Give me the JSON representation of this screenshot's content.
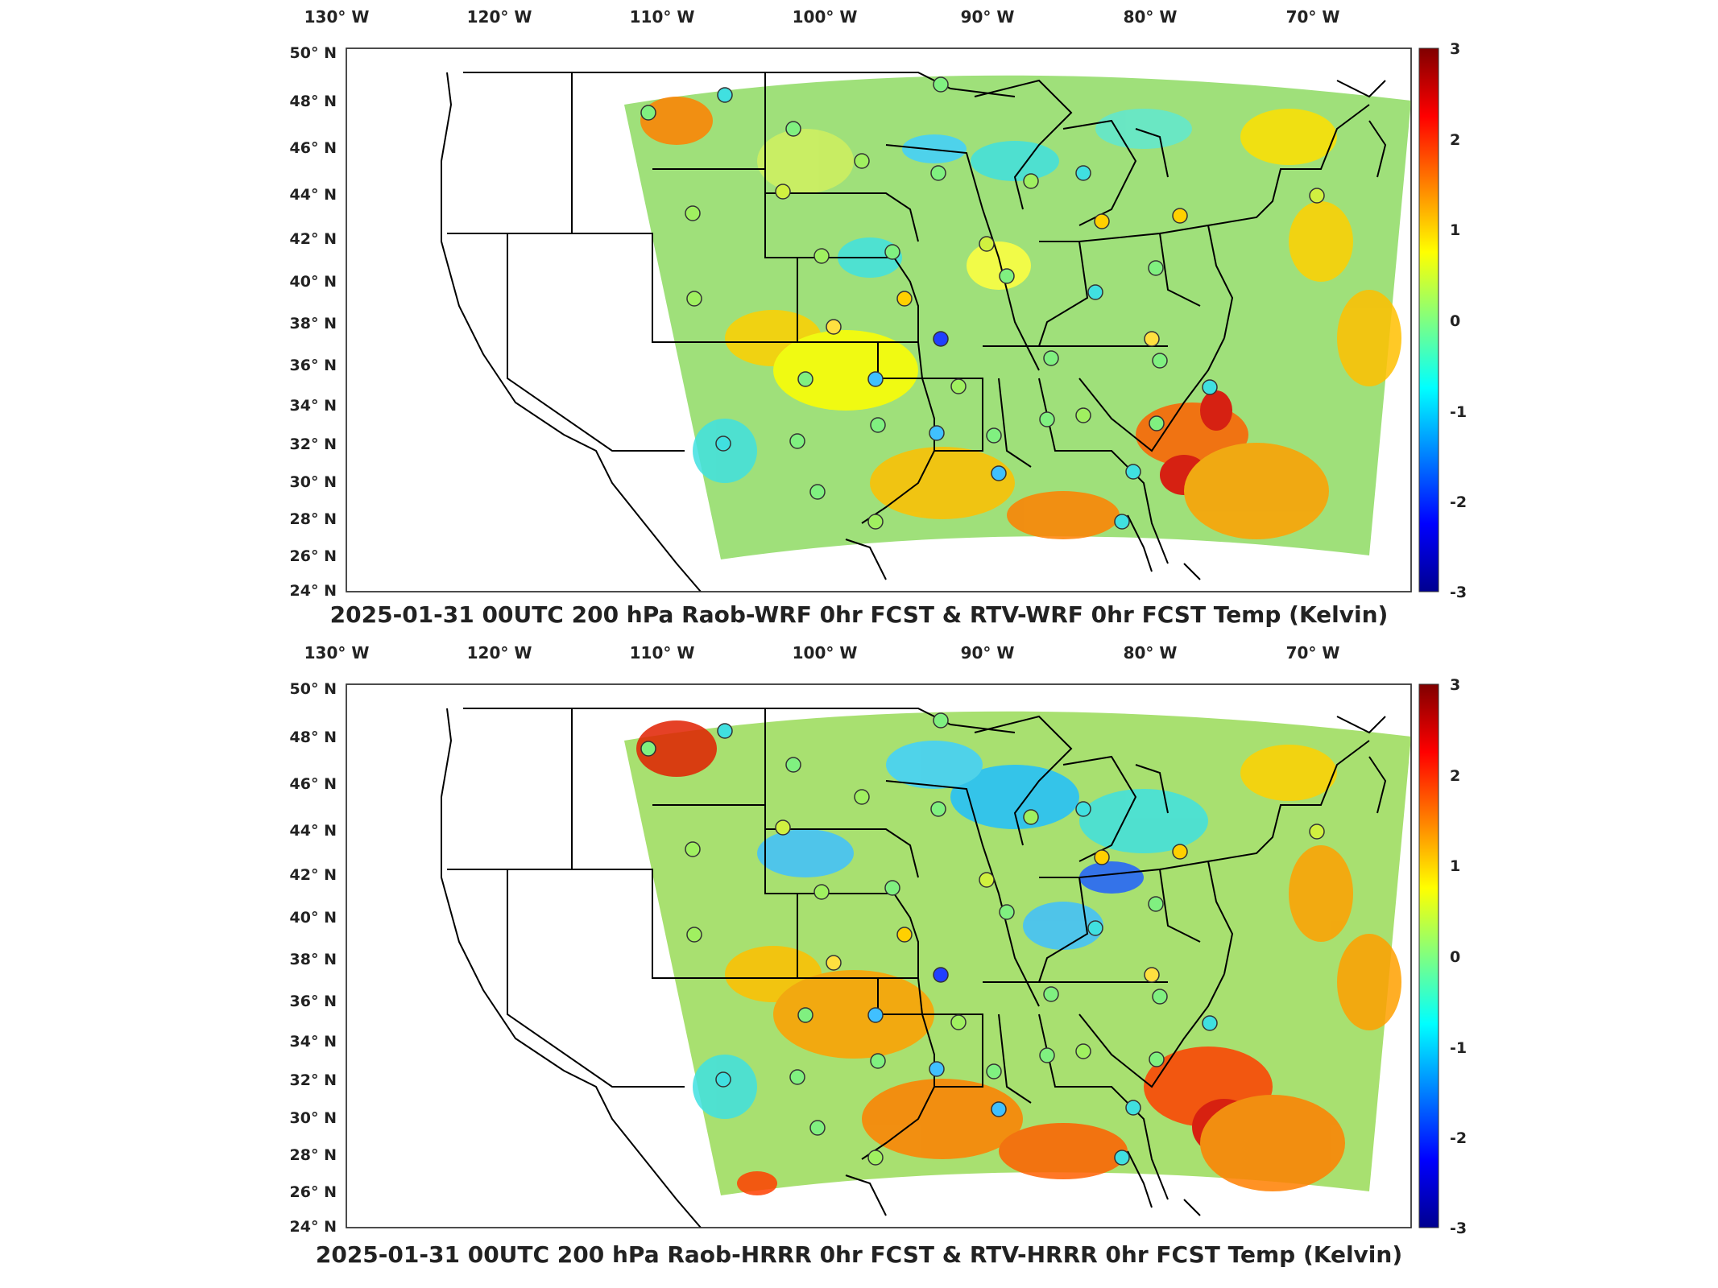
{
  "panels": [
    {
      "title": "2025-01-31 00UTC 200 hPa Raob-WRF 0hr FCST & RTV-WRF 0hr FCST Temp (Kelvin)",
      "lon_labels": [
        "130° W",
        "120° W",
        "110° W",
        "100° W",
        "90° W",
        "80° W",
        "70° W"
      ],
      "lat_labels": [
        "50° N",
        "48° N",
        "46° N",
        "44° N",
        "42° N",
        "40° N",
        "38° N",
        "36° N",
        "34° N",
        "32° N",
        "30° N",
        "28° N",
        "26° N",
        "24° N"
      ],
      "colorbar": {
        "range": [
          -3,
          3
        ],
        "ticks": [
          "3",
          "2",
          "1",
          "0",
          "-1",
          "-2",
          "-3"
        ]
      }
    },
    {
      "title": "2025-01-31 00UTC 200 hPa Raob-HRRR 0hr FCST & RTV-HRRR 0hr FCST Temp (Kelvin)",
      "lon_labels": [
        "130° W",
        "120° W",
        "110° W",
        "100° W",
        "90° W",
        "80° W",
        "70° W"
      ],
      "lat_labels": [
        "50° N",
        "48° N",
        "46° N",
        "44° N",
        "42° N",
        "40° N",
        "38° N",
        "36° N",
        "34° N",
        "32° N",
        "30° N",
        "28° N",
        "26° N",
        "24° N"
      ],
      "colorbar": {
        "range": [
          -3,
          3
        ],
        "ticks": [
          "3",
          "2",
          "1",
          "0",
          "-1",
          "-2",
          "-3"
        ]
      }
    }
  ],
  "colors": {
    "colormap": [
      "#00008f",
      "#0000ff",
      "#0080ff",
      "#00ffff",
      "#80ff80",
      "#ffff00",
      "#ff8000",
      "#ff0000",
      "#800000"
    ],
    "field_base": "#9fe07a",
    "outline": "#000000"
  }
}
